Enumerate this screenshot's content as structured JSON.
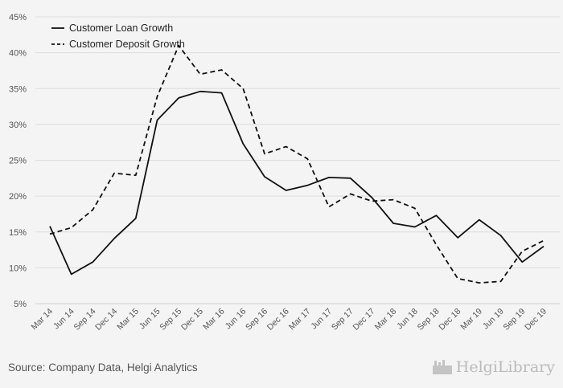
{
  "chart_data": {
    "type": "line",
    "categories": [
      "Mar 14",
      "Jun 14",
      "Sep 14",
      "Dec 14",
      "Mar 15",
      "Jun 15",
      "Sep 15",
      "Dec 15",
      "Mar 16",
      "Jun 16",
      "Sep 16",
      "Dec 16",
      "Mar 17",
      "Jun 17",
      "Sep 17",
      "Dec 17",
      "Mar 18",
      "Jun 18",
      "Sep 18",
      "Dec 18",
      "Mar 19",
      "Jun 19",
      "Sep 19",
      "Dec 19"
    ],
    "series": [
      {
        "name": "Customer Loan Growth",
        "style": "solid",
        "values": [
          15.8,
          9.1,
          10.8,
          14.1,
          16.9,
          30.6,
          33.7,
          34.6,
          34.4,
          27.3,
          22.7,
          20.8,
          21.5,
          22.6,
          22.5,
          19.8,
          16.2,
          15.7,
          17.3,
          14.2,
          16.7,
          14.5,
          10.8,
          13.0
        ]
      },
      {
        "name": "Customer Deposit Growth",
        "style": "dashed",
        "values": [
          14.7,
          15.6,
          18.1,
          23.2,
          22.9,
          33.9,
          41.0,
          37.0,
          37.6,
          35.0,
          25.9,
          26.9,
          25.2,
          18.5,
          20.3,
          19.3,
          19.5,
          18.3,
          13.2,
          8.5,
          7.9,
          8.1,
          12.3,
          13.8
        ]
      }
    ],
    "yticks": [
      "5%",
      "10%",
      "15%",
      "20%",
      "25%",
      "30%",
      "35%",
      "40%",
      "45%"
    ],
    "ylim": [
      5,
      45
    ],
    "grid": true,
    "legend": "top-left"
  },
  "source_text": "Source: Company Data, Helgi Analytics",
  "brand": {
    "name": "HelgiLibrary",
    "icon": "factory-icon",
    "color": "#bbbbbb"
  }
}
